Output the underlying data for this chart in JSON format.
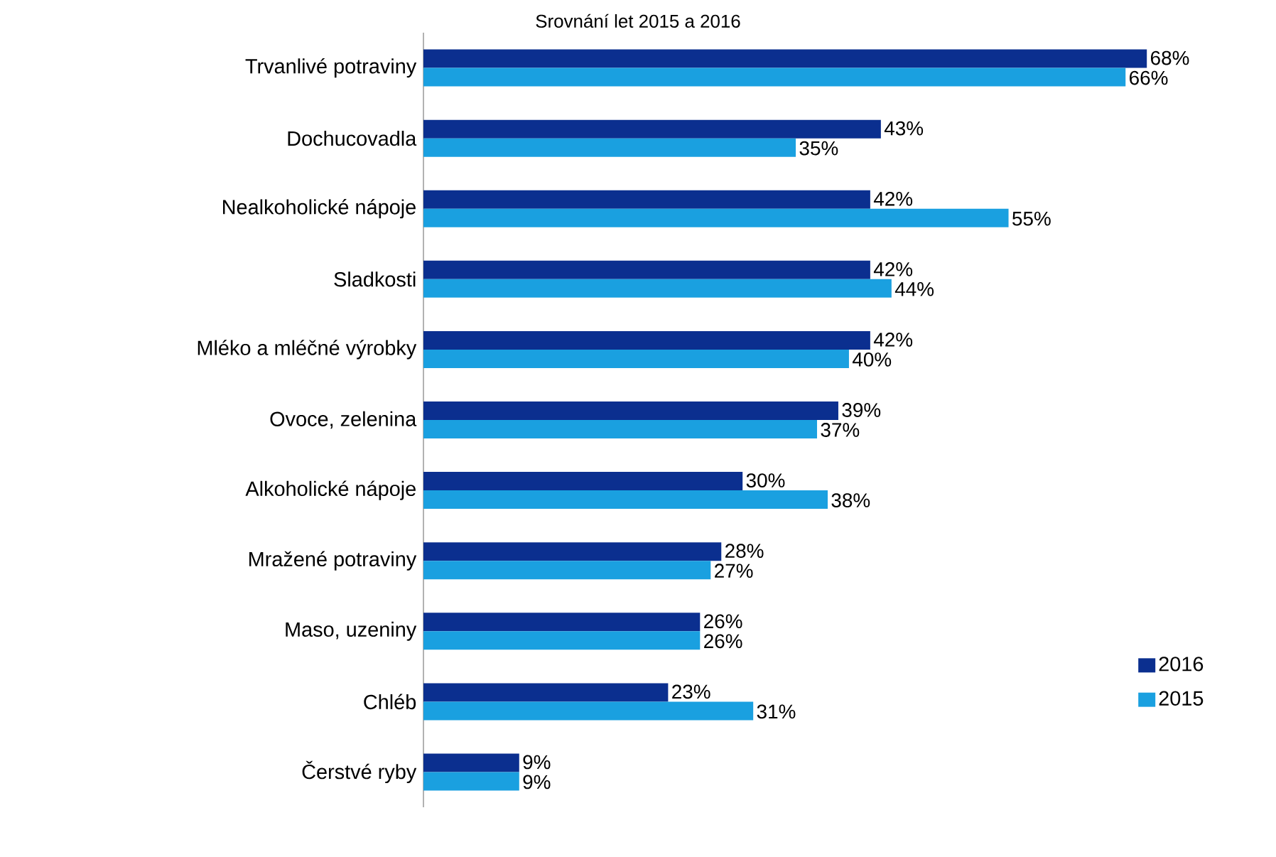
{
  "chart_data": {
    "type": "bar",
    "orientation": "horizontal",
    "title": "Srovnání let 2015 a 2016",
    "categories": [
      "Trvanlivé potraviny",
      "Dochucovadla",
      "Nealkoholické nápoje",
      "Sladkosti",
      "Mléko a mléčné výrobky",
      "Ovoce, zelenina",
      "Alkoholické nápoje",
      "Mražené potraviny",
      "Maso, uzeniny",
      "Chléb",
      "Čerstvé ryby"
    ],
    "series": [
      {
        "name": "2016",
        "color": "#0b2f8f",
        "values": [
          68,
          43,
          42,
          42,
          42,
          39,
          30,
          28,
          26,
          23,
          9
        ],
        "value_labels": [
          "68%",
          "43%",
          "42%",
          "42%",
          "42%",
          "39%",
          "30%",
          "28%",
          "26%",
          "23%",
          "9%"
        ]
      },
      {
        "name": "2015",
        "color": "#1aa0e0",
        "values": [
          66,
          35,
          55,
          44,
          40,
          37,
          38,
          27,
          26,
          31,
          9
        ],
        "value_labels": [
          "66%",
          "35%",
          "55%",
          "44%",
          "40%",
          "37%",
          "38%",
          "27%",
          "26%",
          "31%",
          "9%"
        ]
      }
    ],
    "legend": "bottom right"
  }
}
